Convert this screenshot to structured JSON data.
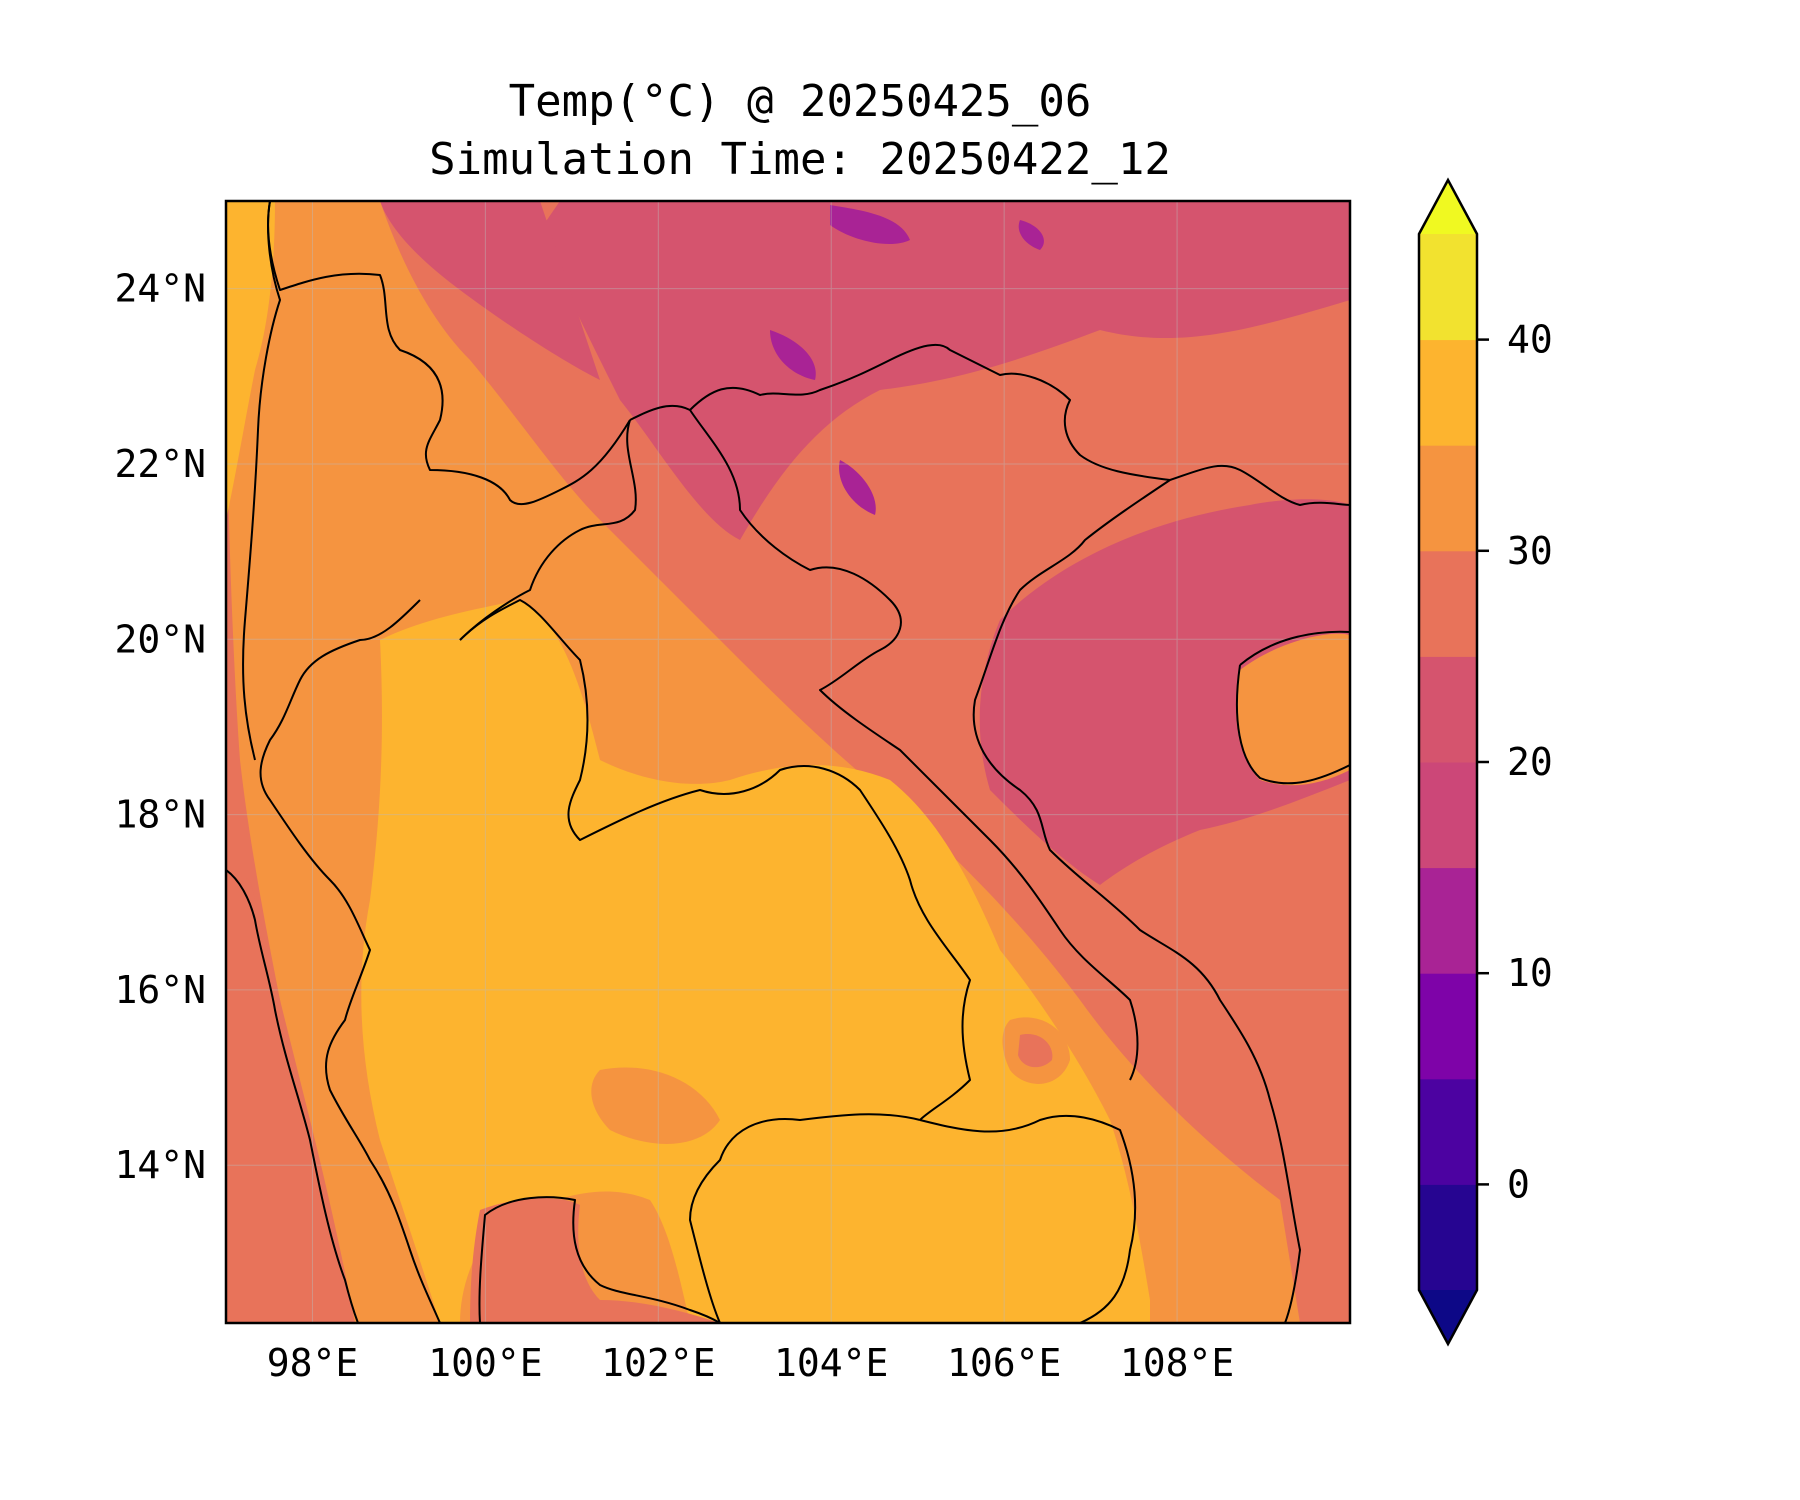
{
  "title": {
    "line1": "Temp(°C) @ 20250425_06",
    "line2": "Simulation Time: 20250422_12"
  },
  "map": {
    "lon_range": [
      97.0,
      110.0
    ],
    "lat_range": [
      12.2,
      25.0
    ],
    "x_ticks": [
      "98°E",
      "100°E",
      "102°E",
      "104°E",
      "106°E",
      "108°E"
    ],
    "x_tick_values": [
      98,
      100,
      102,
      104,
      106,
      108
    ],
    "y_ticks": [
      "24°N",
      "22°N",
      "20°N",
      "18°N",
      "16°N",
      "14°N"
    ],
    "y_tick_values": [
      24,
      22,
      20,
      18,
      16,
      14
    ],
    "gridlines": true,
    "coastlines_and_borders": true
  },
  "colorbar": {
    "colormap": "plasma",
    "extend": "both",
    "levels": [
      -5,
      0,
      5,
      10,
      15,
      20,
      25,
      30,
      35,
      40,
      45
    ],
    "tick_labels": [
      "0",
      "10",
      "20",
      "30",
      "40"
    ],
    "tick_values": [
      0,
      10,
      20,
      30,
      40
    ],
    "colors": [
      "#0d0887",
      "#260591",
      "#4c02a1",
      "#7e03a8",
      "#a92395",
      "#cc4778",
      "#d5546e",
      "#e8735a",
      "#f59440",
      "#fdb42f",
      "#f2e22f",
      "#f0f921"
    ]
  },
  "regions": {
    "lowland_center_temp_c": 37,
    "southern_vietnam_lowland_temp_c": 37,
    "gulf_of_tonkin_temp_c": 23,
    "open_sea_temp_c": 28,
    "northern_highlands_temp_c": 22
  }
}
